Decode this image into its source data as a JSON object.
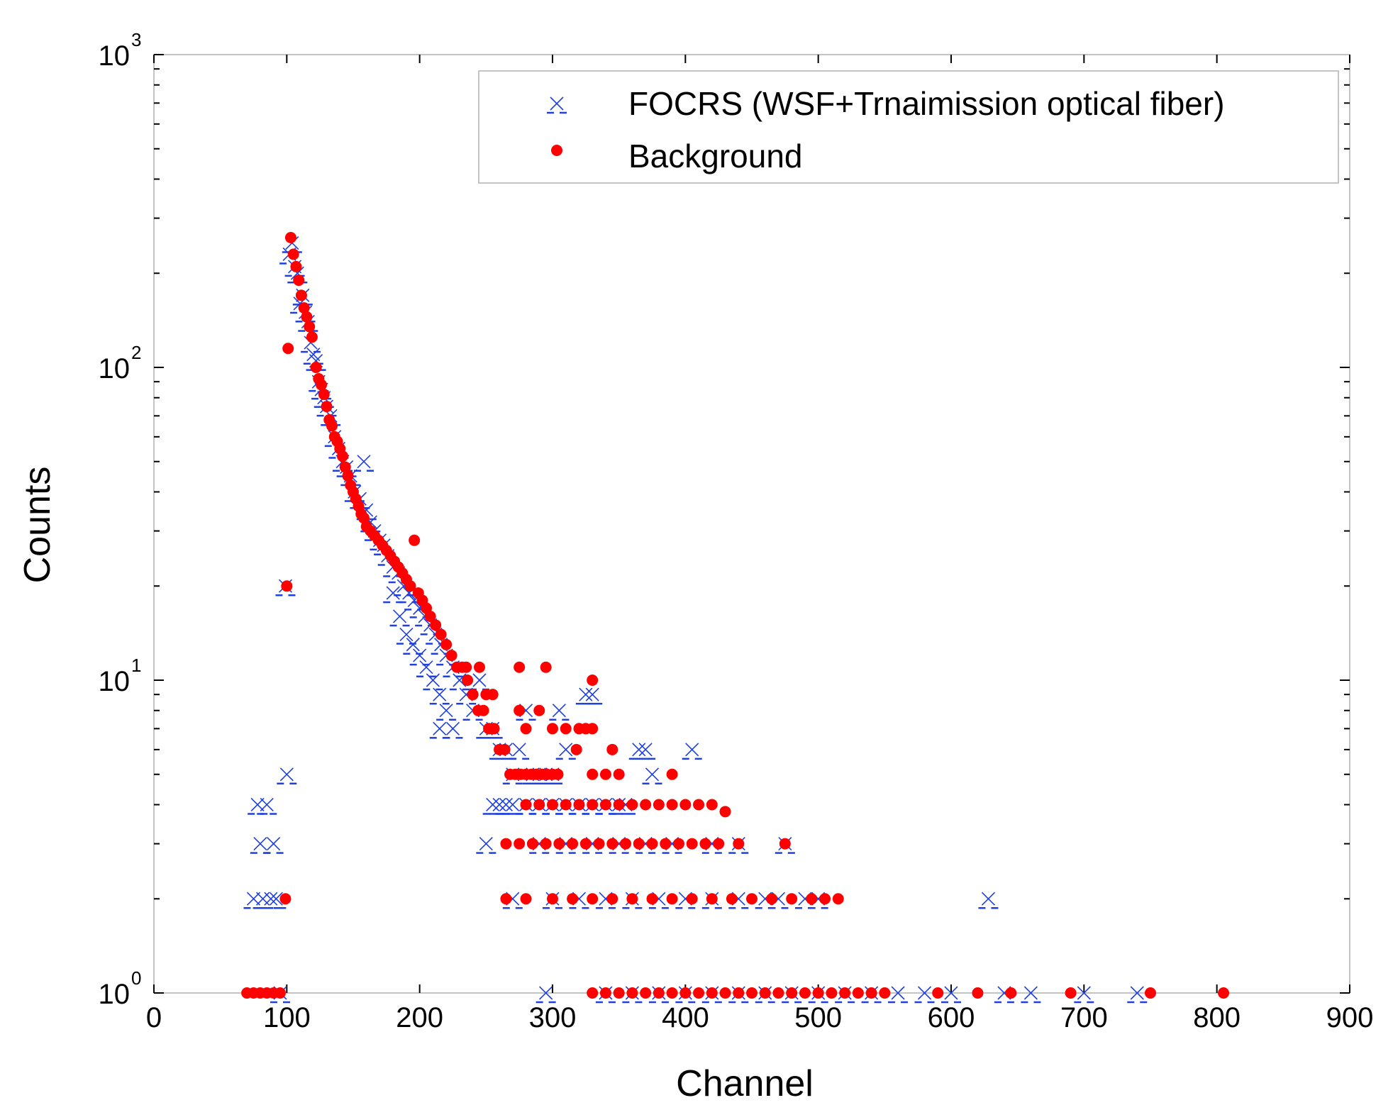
{
  "chart_data": {
    "type": "scatter",
    "xlabel": "Channel",
    "ylabel": "Counts",
    "xlim": [
      0,
      900
    ],
    "ylim": [
      1,
      1000
    ],
    "yscale": "log",
    "legend_position": "top-right",
    "x_ticks": [
      "0",
      "100",
      "200",
      "300",
      "400",
      "500",
      "600",
      "700",
      "800",
      "900"
    ],
    "y_ticks": [
      {
        "base": "10",
        "exp": "0",
        "value": 1
      },
      {
        "base": "10",
        "exp": "1",
        "value": 10
      },
      {
        "base": "10",
        "exp": "2",
        "value": 100
      },
      {
        "base": "10",
        "exp": "3",
        "value": 1000
      }
    ],
    "colors": {
      "focrs": "#1f3fe0",
      "background": "#ff0000",
      "axis": "#000000",
      "box": "#b0b0b0"
    },
    "series": [
      {
        "name": "FOCRS (WSF+Trnaimission optical fiber)",
        "marker": "x",
        "points": [
          [
            75,
            2
          ],
          [
            78,
            4
          ],
          [
            80,
            3
          ],
          [
            82,
            2
          ],
          [
            85,
            4
          ],
          [
            88,
            2
          ],
          [
            90,
            3
          ],
          [
            92,
            2
          ],
          [
            95,
            1
          ],
          [
            100,
            5
          ],
          [
            99,
            20
          ],
          [
            102,
            230
          ],
          [
            104,
            250
          ],
          [
            106,
            210
          ],
          [
            108,
            200
          ],
          [
            110,
            160
          ],
          [
            112,
            170
          ],
          [
            114,
            150
          ],
          [
            116,
            140
          ],
          [
            118,
            120
          ],
          [
            120,
            110
          ],
          [
            122,
            105
          ],
          [
            124,
            90
          ],
          [
            126,
            85
          ],
          [
            128,
            80
          ],
          [
            130,
            75
          ],
          [
            133,
            70
          ],
          [
            136,
            60
          ],
          [
            139,
            55
          ],
          [
            142,
            50
          ],
          [
            145,
            48
          ],
          [
            148,
            45
          ],
          [
            151,
            40
          ],
          [
            155,
            38
          ],
          [
            158,
            50
          ],
          [
            160,
            35
          ],
          [
            163,
            32
          ],
          [
            166,
            30
          ],
          [
            170,
            28
          ],
          [
            173,
            27
          ],
          [
            176,
            25
          ],
          [
            180,
            23
          ],
          [
            184,
            22
          ],
          [
            188,
            20
          ],
          [
            192,
            19
          ],
          [
            196,
            18
          ],
          [
            200,
            17
          ],
          [
            204,
            16
          ],
          [
            208,
            15
          ],
          [
            212,
            14
          ],
          [
            216,
            13
          ],
          [
            220,
            12
          ],
          [
            225,
            11
          ],
          [
            230,
            10
          ],
          [
            235,
            9
          ],
          [
            240,
            8
          ],
          [
            245,
            10
          ],
          [
            250,
            7
          ],
          [
            180,
            19
          ],
          [
            185,
            16
          ],
          [
            190,
            14
          ],
          [
            195,
            13
          ],
          [
            200,
            12
          ],
          [
            205,
            11
          ],
          [
            210,
            10
          ],
          [
            215,
            9
          ],
          [
            220,
            8
          ],
          [
            225,
            7
          ],
          [
            215,
            7
          ],
          [
            255,
            7
          ],
          [
            260,
            6
          ],
          [
            265,
            6
          ],
          [
            270,
            5
          ],
          [
            275,
            6
          ],
          [
            280,
            8
          ],
          [
            285,
            5
          ],
          [
            290,
            5
          ],
          [
            295,
            5
          ],
          [
            300,
            5
          ],
          [
            305,
            8
          ],
          [
            310,
            6
          ],
          [
            250,
            3
          ],
          [
            255,
            4
          ],
          [
            260,
            4
          ],
          [
            265,
            4
          ],
          [
            270,
            4
          ],
          [
            280,
            4
          ],
          [
            290,
            4
          ],
          [
            300,
            4
          ],
          [
            310,
            4
          ],
          [
            320,
            4
          ],
          [
            330,
            4
          ],
          [
            340,
            4
          ],
          [
            350,
            4
          ],
          [
            355,
            4
          ],
          [
            325,
            9
          ],
          [
            330,
            9
          ],
          [
            365,
            6
          ],
          [
            370,
            6
          ],
          [
            375,
            5
          ],
          [
            405,
            6
          ],
          [
            290,
            3
          ],
          [
            310,
            3
          ],
          [
            330,
            3
          ],
          [
            350,
            3
          ],
          [
            370,
            3
          ],
          [
            390,
            3
          ],
          [
            420,
            3
          ],
          [
            440,
            3
          ],
          [
            475,
            3
          ],
          [
            270,
            2
          ],
          [
            300,
            2
          ],
          [
            320,
            2
          ],
          [
            340,
            2
          ],
          [
            360,
            2
          ],
          [
            380,
            2
          ],
          [
            400,
            2
          ],
          [
            420,
            2
          ],
          [
            440,
            2
          ],
          [
            460,
            2
          ],
          [
            470,
            2
          ],
          [
            490,
            2
          ],
          [
            500,
            2
          ],
          [
            628,
            2
          ],
          [
            295,
            1
          ],
          [
            340,
            1
          ],
          [
            360,
            1
          ],
          [
            380,
            1
          ],
          [
            400,
            1
          ],
          [
            420,
            1
          ],
          [
            440,
            1
          ],
          [
            460,
            1
          ],
          [
            480,
            1
          ],
          [
            500,
            1
          ],
          [
            520,
            1
          ],
          [
            540,
            1
          ],
          [
            560,
            1
          ],
          [
            580,
            1
          ],
          [
            600,
            1
          ],
          [
            640,
            1
          ],
          [
            660,
            1
          ],
          [
            700,
            1
          ],
          [
            740,
            1
          ]
        ]
      },
      {
        "name": "Background",
        "marker": "o",
        "points": [
          [
            75,
            1
          ],
          [
            80,
            1
          ],
          [
            85,
            1
          ],
          [
            90,
            1
          ],
          [
            95,
            1
          ],
          [
            99,
            2
          ],
          [
            100,
            20
          ],
          [
            101,
            115
          ],
          [
            103,
            260
          ],
          [
            105,
            230
          ],
          [
            107,
            210
          ],
          [
            109,
            190
          ],
          [
            111,
            170
          ],
          [
            113,
            155
          ],
          [
            115,
            145
          ],
          [
            117,
            135
          ],
          [
            119,
            125
          ],
          [
            122,
            100
          ],
          [
            124,
            92
          ],
          [
            126,
            88
          ],
          [
            128,
            82
          ],
          [
            130,
            75
          ],
          [
            132,
            68
          ],
          [
            134,
            65
          ],
          [
            136,
            60
          ],
          [
            138,
            58
          ],
          [
            140,
            55
          ],
          [
            142,
            52
          ],
          [
            144,
            48
          ],
          [
            146,
            45
          ],
          [
            148,
            42
          ],
          [
            150,
            40
          ],
          [
            152,
            38
          ],
          [
            154,
            36
          ],
          [
            156,
            34
          ],
          [
            158,
            33
          ],
          [
            160,
            31
          ],
          [
            163,
            30
          ],
          [
            166,
            29
          ],
          [
            169,
            28
          ],
          [
            172,
            27
          ],
          [
            175,
            26
          ],
          [
            178,
            25
          ],
          [
            181,
            24
          ],
          [
            184,
            23
          ],
          [
            187,
            22
          ],
          [
            190,
            21
          ],
          [
            193,
            20
          ],
          [
            196,
            28
          ],
          [
            199,
            19
          ],
          [
            202,
            18
          ],
          [
            205,
            17
          ],
          [
            208,
            16
          ],
          [
            212,
            15
          ],
          [
            216,
            14
          ],
          [
            220,
            13
          ],
          [
            224,
            12
          ],
          [
            228,
            11
          ],
          [
            232,
            11
          ],
          [
            236,
            10
          ],
          [
            240,
            9
          ],
          [
            244,
            8
          ],
          [
            248,
            8
          ],
          [
            252,
            7
          ],
          [
            256,
            7
          ],
          [
            260,
            6
          ],
          [
            264,
            6
          ],
          [
            268,
            5
          ],
          [
            272,
            5
          ],
          [
            276,
            5
          ],
          [
            280,
            5
          ],
          [
            284,
            5
          ],
          [
            288,
            5
          ],
          [
            292,
            5
          ],
          [
            296,
            5
          ],
          [
            300,
            5
          ],
          [
            304,
            5
          ],
          [
            235,
            11
          ],
          [
            240,
            9
          ],
          [
            245,
            11
          ],
          [
            250,
            9
          ],
          [
            255,
            9
          ],
          [
            275,
            11
          ],
          [
            295,
            11
          ],
          [
            275,
            8
          ],
          [
            280,
            7
          ],
          [
            290,
            8
          ],
          [
            300,
            7
          ],
          [
            310,
            7
          ],
          [
            318,
            6
          ],
          [
            330,
            10
          ],
          [
            320,
            7
          ],
          [
            325,
            7
          ],
          [
            330,
            7
          ],
          [
            345,
            6
          ],
          [
            330,
            5
          ],
          [
            340,
            5
          ],
          [
            350,
            5
          ],
          [
            390,
            5
          ],
          [
            280,
            4
          ],
          [
            290,
            4
          ],
          [
            300,
            4
          ],
          [
            310,
            4
          ],
          [
            320,
            4
          ],
          [
            330,
            4
          ],
          [
            340,
            4
          ],
          [
            350,
            4
          ],
          [
            360,
            4
          ],
          [
            370,
            4
          ],
          [
            380,
            4
          ],
          [
            390,
            4
          ],
          [
            400,
            4
          ],
          [
            410,
            4
          ],
          [
            420,
            4
          ],
          [
            430,
            3.8
          ],
          [
            265,
            3
          ],
          [
            275,
            3
          ],
          [
            285,
            3
          ],
          [
            295,
            3
          ],
          [
            305,
            3
          ],
          [
            315,
            3
          ],
          [
            325,
            3
          ],
          [
            335,
            3
          ],
          [
            345,
            3
          ],
          [
            355,
            3
          ],
          [
            365,
            3
          ],
          [
            375,
            3
          ],
          [
            385,
            3
          ],
          [
            395,
            3
          ],
          [
            405,
            3
          ],
          [
            415,
            3
          ],
          [
            425,
            3
          ],
          [
            440,
            3
          ],
          [
            475,
            3
          ],
          [
            265,
            2
          ],
          [
            280,
            2
          ],
          [
            300,
            2
          ],
          [
            315,
            2
          ],
          [
            330,
            2
          ],
          [
            345,
            2
          ],
          [
            360,
            2
          ],
          [
            375,
            2
          ],
          [
            390,
            2
          ],
          [
            405,
            2
          ],
          [
            420,
            2
          ],
          [
            435,
            2
          ],
          [
            450,
            2
          ],
          [
            465,
            2
          ],
          [
            480,
            2
          ],
          [
            495,
            2
          ],
          [
            505,
            2
          ],
          [
            515,
            2
          ],
          [
            70,
            1
          ],
          [
            330,
            1
          ],
          [
            340,
            1
          ],
          [
            350,
            1
          ],
          [
            360,
            1
          ],
          [
            370,
            1
          ],
          [
            380,
            1
          ],
          [
            390,
            1
          ],
          [
            400,
            1
          ],
          [
            410,
            1
          ],
          [
            420,
            1
          ],
          [
            430,
            1
          ],
          [
            440,
            1
          ],
          [
            450,
            1
          ],
          [
            460,
            1
          ],
          [
            470,
            1
          ],
          [
            480,
            1
          ],
          [
            490,
            1
          ],
          [
            500,
            1
          ],
          [
            510,
            1
          ],
          [
            520,
            1
          ],
          [
            530,
            1
          ],
          [
            540,
            1
          ],
          [
            550,
            1
          ],
          [
            590,
            1
          ],
          [
            620,
            1
          ],
          [
            645,
            1
          ],
          [
            690,
            1
          ],
          [
            750,
            1
          ],
          [
            805,
            1
          ]
        ]
      }
    ]
  }
}
